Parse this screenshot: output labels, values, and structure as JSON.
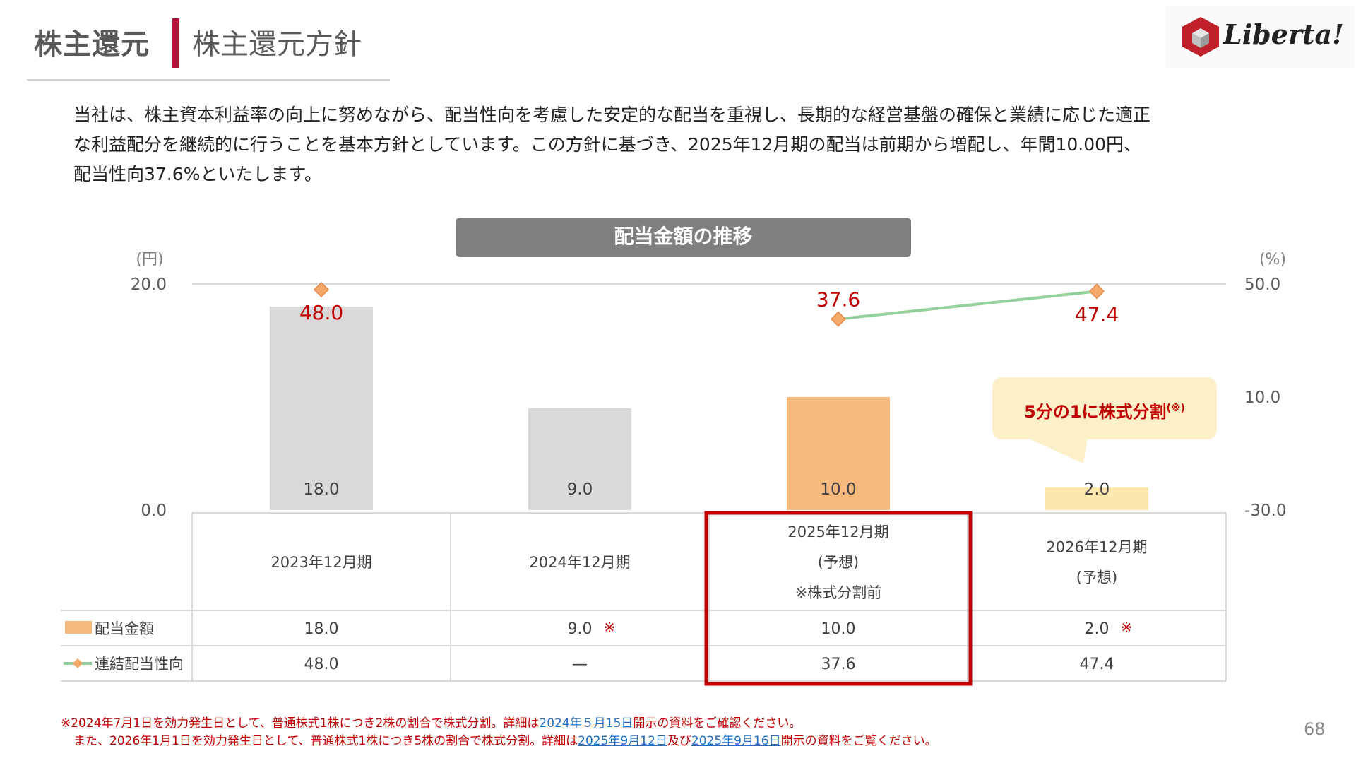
{
  "header": {
    "section": "株主還元",
    "title": "株主還元方針",
    "logo_text": "Liberta!"
  },
  "intro_lines": [
    "当社は、株主資本利益率の向上に努めながら、配当性向を考慮した安定的な配当を重視し、長期的な経営基盤の確保と業績に応じた適正",
    "な利益配分を継続的に行うことを基本方針としています。この方針に基づき、2025年12月期の配当は前期から増配し、年間10.00円、",
    "配当性向37.6%といたします。"
  ],
  "chart_data": {
    "type": "bar",
    "title": "配当金額の推移",
    "categories": [
      [
        "2023年12月期"
      ],
      [
        "2024年12月期"
      ],
      [
        "2025年12月期",
        "(予想)",
        "※株式分割前"
      ],
      [
        "2026年12月期",
        "(予想)"
      ]
    ],
    "series": [
      {
        "name": "配当金額",
        "type": "bar",
        "axis": "left",
        "values": [
          18.0,
          9.0,
          10.0,
          2.0
        ],
        "labels": [
          "18.0",
          "9.0",
          "10.0",
          "2.0"
        ],
        "colors": [
          "#d9d9d9",
          "#d9d9d9",
          "#f8b97f",
          "#fde7ad"
        ]
      },
      {
        "name": "連結配当性向",
        "type": "line",
        "axis": "right",
        "values": [
          48.0,
          null,
          37.6,
          47.4
        ],
        "labels": [
          "48.0",
          "",
          "37.6",
          "47.4"
        ],
        "marker_color": "#f4a96a",
        "line_color": "#92d09c"
      }
    ],
    "y_left": {
      "unit": "(円)",
      "range": [
        0,
        20
      ],
      "ticks": [
        "20.0",
        "0.0"
      ]
    },
    "y_right": {
      "unit": "(%)",
      "range": [
        -30,
        50
      ],
      "ticks": [
        "50.0",
        "10.0",
        "-30.0"
      ]
    },
    "table": {
      "rows": [
        {
          "label": "配当金額",
          "cells": [
            "18.0",
            "9.0",
            "10.0",
            "2.0"
          ],
          "marks": [
            "",
            "※",
            "",
            "※"
          ]
        },
        {
          "label": "連結配当性向",
          "cells": [
            "48.0",
            "—",
            "37.6",
            "47.4"
          ],
          "marks": [
            "",
            "",
            "",
            ""
          ]
        }
      ]
    },
    "highlight_column": 2,
    "highlight_color": "#c00000",
    "callout": "5分の1に株式分割",
    "callout_sup": "(※)"
  },
  "footnotes": {
    "line1_pre": "※2024年7月1日を効力発生日として、普通株式1株につき2株の割合で株式分割。詳細は",
    "line1_link": "2024年５月15日",
    "line1_post": "開示の資料をご確認ください。",
    "line2_pre": "また、2026年1月1日を効力発生日として、普通株式1株につき5株の割合で株式分割。詳細は",
    "line2_link1": "2025年9月12日",
    "line2_mid": "及び",
    "line2_link2": "2025年9月16日",
    "line2_post": "開示の資料をご覧ください。"
  },
  "page_number": "68",
  "colors": {
    "accent": "#b5123a",
    "red": "#c00000",
    "link": "#1f6fc5"
  }
}
